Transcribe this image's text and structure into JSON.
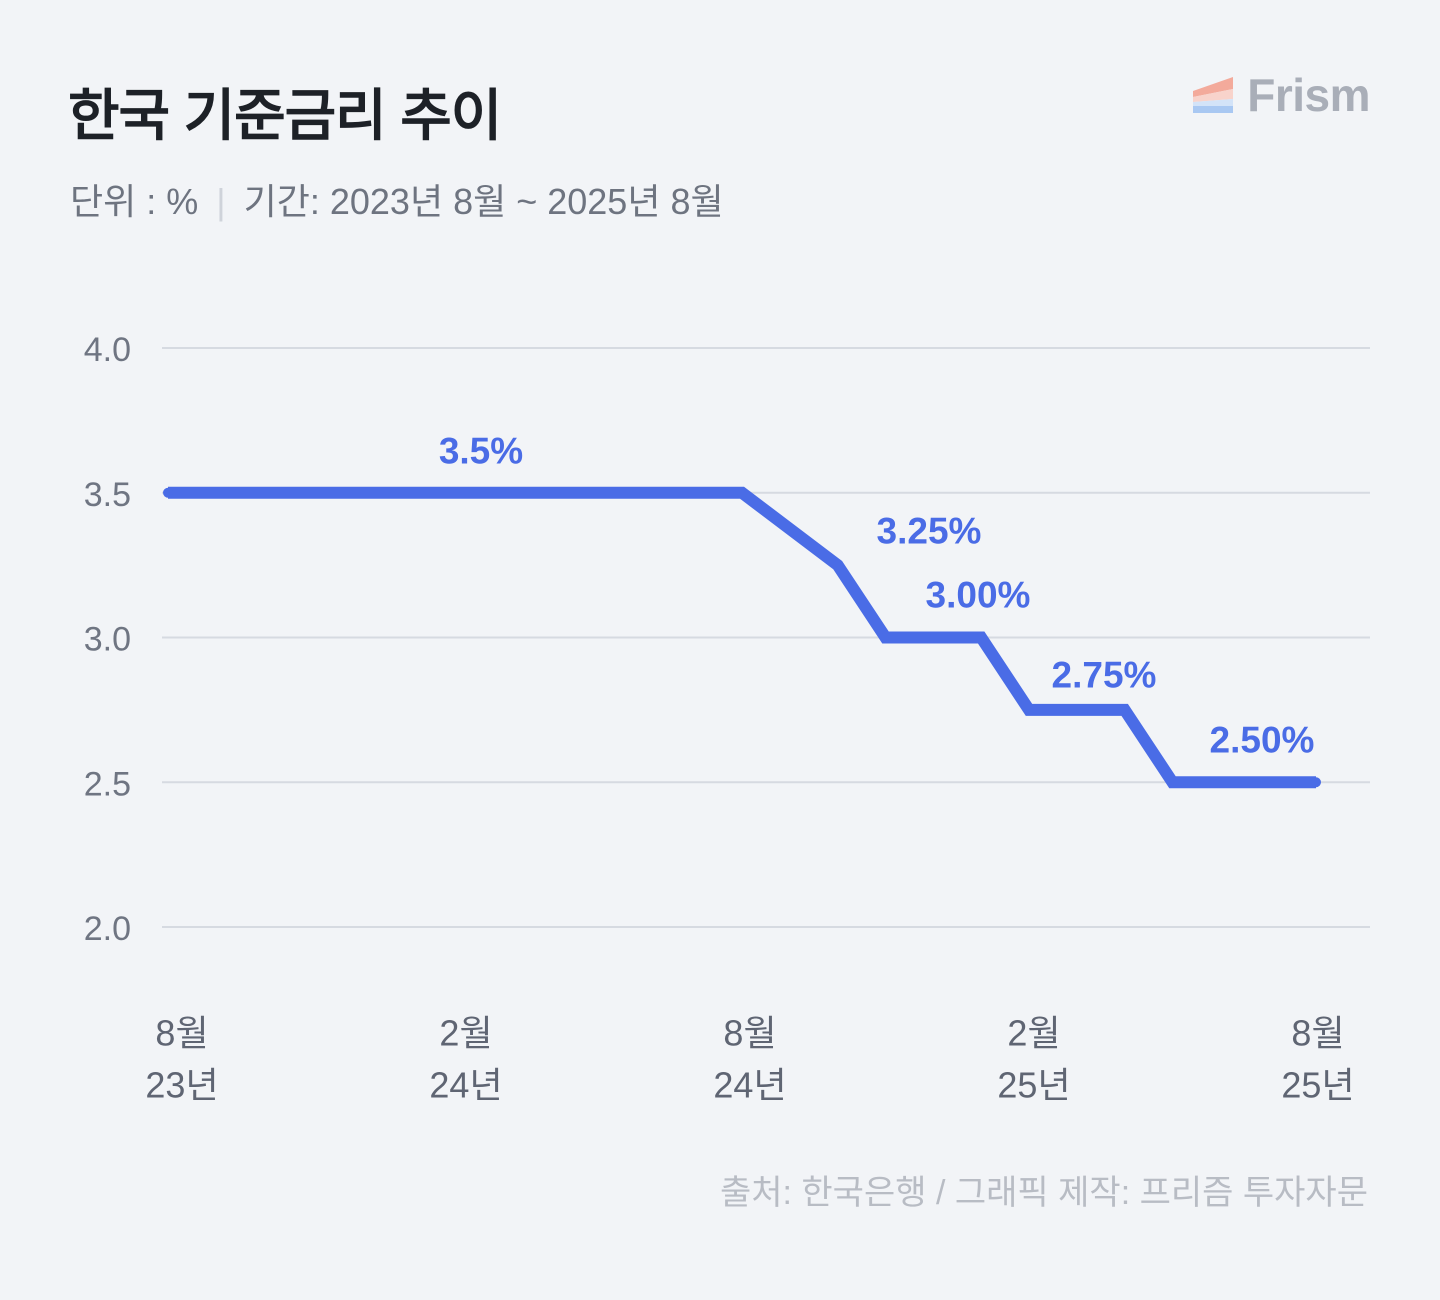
{
  "header": {
    "unit_label": "단위 : %",
    "separator": "|",
    "period_label": "기간: 2023년 8월 ~ 2025년 8월"
  },
  "logo": {
    "text": "Frism",
    "icon": "frism-logo-icon"
  },
  "colors": {
    "background": "#f2f4f7",
    "line": "#4a6ce6",
    "grid": "#d6dae1",
    "title": "#1d2127",
    "axis_text": "#6f7582",
    "x_axis_text": "#5f6573",
    "footer_text": "#b8bcc4"
  },
  "chart_data": {
    "type": "line",
    "title": "한국 기준금리 추이",
    "grid": true,
    "ylim": [
      2.0,
      4.0
    ],
    "yticks": [
      4.0,
      3.5,
      3.0,
      2.5,
      2.0
    ],
    "ytick_labels": [
      "4.0",
      "3.5",
      "3.0",
      "2.5",
      "2.0"
    ],
    "xlim": [
      {
        "year": 2023,
        "month": 8
      },
      {
        "year": 2025,
        "month": 8
      }
    ],
    "xticks": [
      {
        "year": 2023,
        "month": 8,
        "month_label": "8월",
        "year_label": "23년"
      },
      {
        "year": 2024,
        "month": 2,
        "month_label": "2월",
        "year_label": "24년"
      },
      {
        "year": 2024,
        "month": 8,
        "month_label": "8월",
        "year_label": "24년"
      },
      {
        "year": 2025,
        "month": 2,
        "month_label": "2월",
        "year_label": "25년"
      },
      {
        "year": 2025,
        "month": 8,
        "month_label": "8월",
        "year_label": "25년"
      }
    ],
    "series": [
      {
        "points": [
          {
            "year": 2023,
            "month": 8,
            "rate": 3.5
          },
          {
            "year": 2024,
            "month": 8,
            "rate": 3.5
          },
          {
            "year": 2024,
            "month": 10,
            "rate": 3.25
          },
          {
            "year": 2024,
            "month": 11,
            "rate": 3.0
          },
          {
            "year": 2025,
            "month": 1,
            "rate": 3.0
          },
          {
            "year": 2025,
            "month": 2,
            "rate": 2.75
          },
          {
            "year": 2025,
            "month": 4,
            "rate": 2.75
          },
          {
            "year": 2025,
            "month": 5,
            "rate": 2.5
          },
          {
            "year": 2025,
            "month": 8,
            "rate": 2.5
          }
        ]
      }
    ],
    "annotations": [
      {
        "text": "3.5%",
        "rate": 3.5
      },
      {
        "text": "3.25%",
        "rate": 3.25
      },
      {
        "text": "3.00%",
        "rate": 3.0
      },
      {
        "text": "2.75%",
        "rate": 2.75
      },
      {
        "text": "2.50%",
        "rate": 2.5
      }
    ]
  },
  "footer": {
    "source": "출처: 한국은행 / 그래픽 제작: 프리즘 투자자문"
  }
}
